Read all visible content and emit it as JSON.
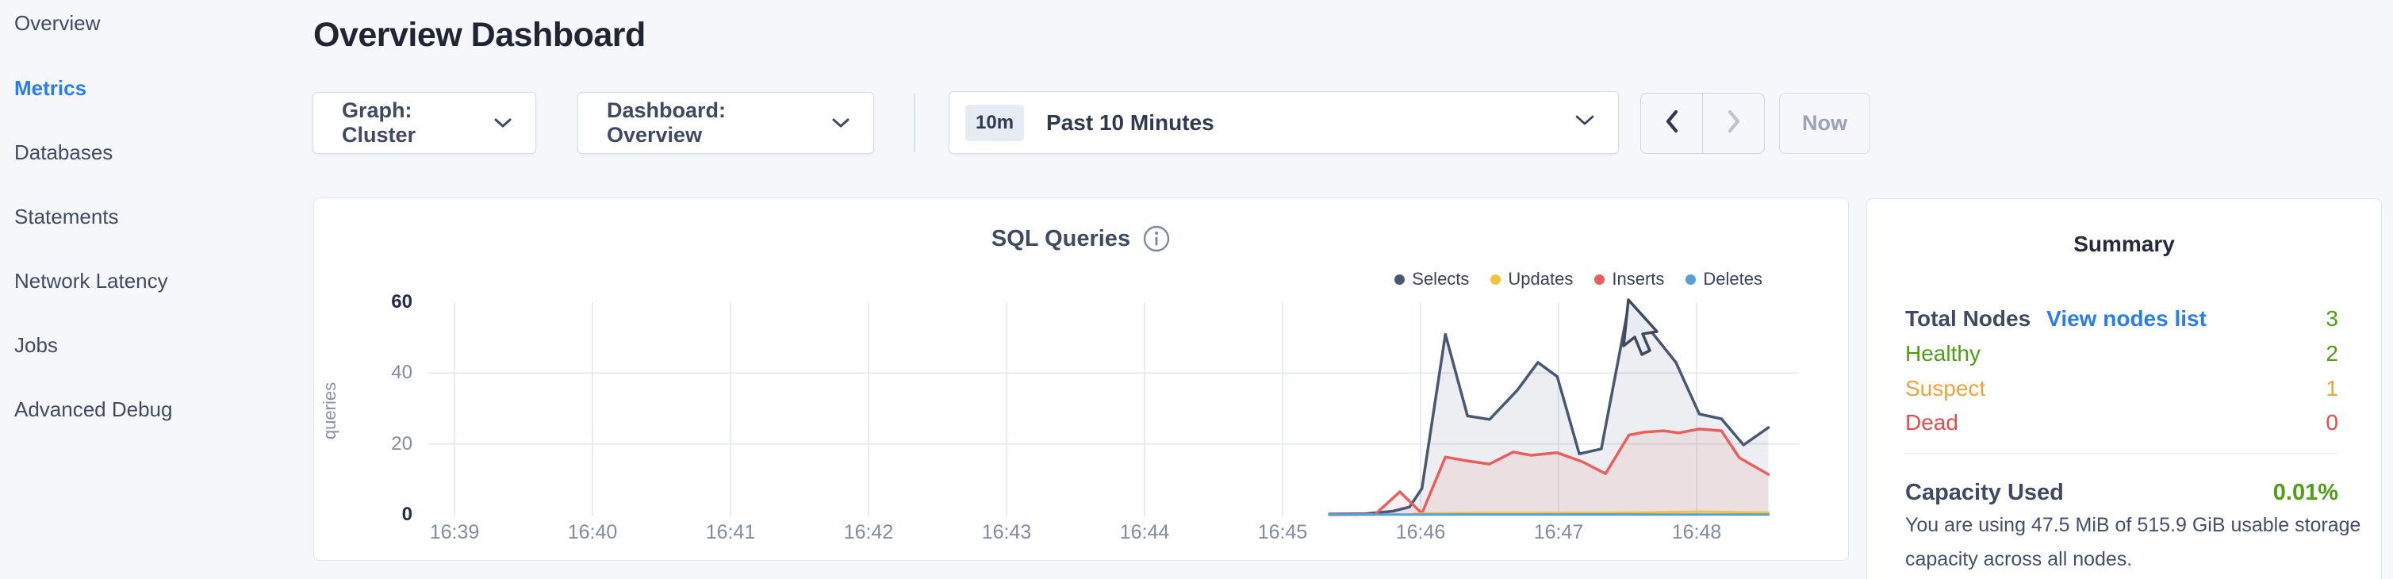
{
  "colors": {
    "accent_blue": "#2b7cef",
    "selects": "#475872",
    "updates": "#f2c33d",
    "inserts": "#e8605e",
    "deletes": "#56a0d9",
    "healthy_green": "#4da015",
    "suspect_orange": "#f0a33c",
    "dead_red": "#e84a4a",
    "page_bg": "#f5f7fa"
  },
  "sidebar": {
    "items": [
      {
        "label": "Overview",
        "active": false
      },
      {
        "label": "Metrics",
        "active": true
      },
      {
        "label": "Databases",
        "active": false
      },
      {
        "label": "Statements",
        "active": false
      },
      {
        "label": "Network Latency",
        "active": false
      },
      {
        "label": "Jobs",
        "active": false
      },
      {
        "label": "Advanced Debug",
        "active": false
      }
    ]
  },
  "header": {
    "title": "Overview Dashboard"
  },
  "controls": {
    "graph_dropdown_label": "Graph: Cluster",
    "dashboard_dropdown_label": "Dashboard: Overview",
    "time_range_badge": "10m",
    "time_range_label": "Past 10 Minutes",
    "now_button_label": "Now"
  },
  "chart_data": {
    "type": "line",
    "title": "SQL Queries",
    "ylabel": "queries",
    "grid": true,
    "legend_position": "top-right",
    "x_axis": {
      "ticks": [
        "16:39",
        "16:40",
        "16:41",
        "16:42",
        "16:43",
        "16:44",
        "16:45",
        "16:46",
        "16:47",
        "16:48"
      ],
      "start_minute": 39,
      "tick_interval_minutes": 1
    },
    "y_axis": {
      "ticks": [
        0,
        20,
        40,
        60
      ],
      "min": 0,
      "max": 60
    },
    "series": [
      {
        "name": "Selects",
        "color": "#475872",
        "fill": "rgba(71,88,114,0.10)",
        "width": 3.5,
        "points": [
          [
            45.34,
            0.2
          ],
          [
            45.6,
            0.3
          ],
          [
            45.8,
            1.0
          ],
          [
            45.92,
            2.2
          ],
          [
            46.01,
            7.4
          ],
          [
            46.18,
            50.9
          ],
          [
            46.34,
            27.9
          ],
          [
            46.5,
            26.9
          ],
          [
            46.7,
            35.1
          ],
          [
            46.85,
            43.0
          ],
          [
            46.99,
            39.0
          ],
          [
            47.15,
            17.2
          ],
          [
            47.31,
            18.6
          ],
          [
            47.51,
            59.5
          ],
          [
            47.68,
            51.3
          ],
          [
            47.85,
            43.0
          ],
          [
            48.02,
            28.4
          ],
          [
            48.18,
            27.1
          ],
          [
            48.34,
            19.7
          ],
          [
            48.52,
            24.6
          ]
        ]
      },
      {
        "name": "Inserts",
        "color": "#e8605e",
        "fill": "rgba(232,96,94,0.10)",
        "width": 3.5,
        "points": [
          [
            45.34,
            0.0
          ],
          [
            45.67,
            0.1
          ],
          [
            45.85,
            6.5
          ],
          [
            46.01,
            0.4
          ],
          [
            46.18,
            16.3
          ],
          [
            46.34,
            15.2
          ],
          [
            46.5,
            14.3
          ],
          [
            46.67,
            17.7
          ],
          [
            46.8,
            16.8
          ],
          [
            46.99,
            17.5
          ],
          [
            47.17,
            15.0
          ],
          [
            47.34,
            11.6
          ],
          [
            47.51,
            22.5
          ],
          [
            47.62,
            23.3
          ],
          [
            47.76,
            23.7
          ],
          [
            47.87,
            23.1
          ],
          [
            48.02,
            24.2
          ],
          [
            48.18,
            23.7
          ],
          [
            48.31,
            16.1
          ],
          [
            48.39,
            14.3
          ],
          [
            48.52,
            11.4
          ]
        ]
      },
      {
        "name": "Updates",
        "color": "#f2c33d",
        "fill": null,
        "width": 3,
        "points": [
          [
            45.95,
            0.3
          ],
          [
            46.3,
            0.5
          ],
          [
            47.0,
            0.5
          ],
          [
            47.6,
            0.6
          ],
          [
            48.02,
            0.9
          ],
          [
            48.3,
            0.7
          ],
          [
            48.52,
            0.6
          ]
        ]
      },
      {
        "name": "Deletes",
        "color": "#56a0d9",
        "fill": null,
        "width": 3,
        "points": [
          [
            45.34,
            0.05
          ],
          [
            48.52,
            0.05
          ]
        ]
      }
    ],
    "legend": [
      {
        "label": "Selects",
        "color": "#475872"
      },
      {
        "label": "Updates",
        "color": "#f2c33d"
      },
      {
        "label": "Inserts",
        "color": "#e8605e"
      },
      {
        "label": "Deletes",
        "color": "#56a0d9"
      }
    ]
  },
  "summary": {
    "title": "Summary",
    "total_nodes_label": "Total Nodes",
    "view_nodes_link": "View nodes list",
    "total_nodes_value": "3",
    "total_nodes_color": "#4da015",
    "status_rows": [
      {
        "label": "Healthy",
        "value": "2",
        "color": "#4da015"
      },
      {
        "label": "Suspect",
        "value": "1",
        "color": "#f0a33c"
      },
      {
        "label": "Dead",
        "value": "0",
        "color": "#e84a4a"
      }
    ],
    "capacity_label": "Capacity Used",
    "capacity_value": "0.01%",
    "capacity_description": "You are using 47.5 MiB of 515.9 GiB usable storage capacity across all nodes."
  }
}
